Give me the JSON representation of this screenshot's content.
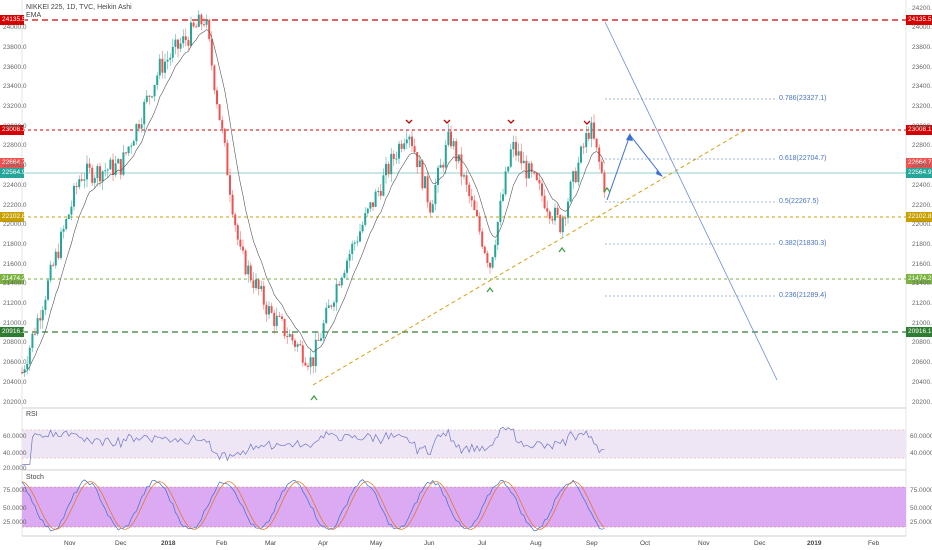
{
  "header": {
    "symbol_line": "NIKKEI 225, 1D, TVC, Heikin Ashi",
    "indicator": "EMA"
  },
  "colors": {
    "up": "#26a69a",
    "down": "#ef5350",
    "resistance": "#d50000",
    "support_green": "#2e7d32",
    "support_yellow": "#c8a000",
    "fib": "#4a73c4",
    "band": "#d9c7e8",
    "stoch_band": "#cc99ee"
  },
  "y_axis": {
    "right_ticks": [
      "24200.0",
      "24000.0",
      "23800.0",
      "23600.0",
      "23400.0",
      "23200.0",
      "23000.0",
      "22800.0",
      "22600.0",
      "22400.0",
      "22200.0",
      "22000.0",
      "21800.0",
      "21600.0",
      "21400.0",
      "21200.0",
      "21000.0",
      "20800.0",
      "20600.0",
      "20400.0",
      "20200.0"
    ],
    "left_ticks": [
      "24200.0",
      "24000.0",
      "23800.0",
      "23600.0",
      "23400.0",
      "23200.0",
      "23000.0",
      "22800.0",
      "22600.0",
      "22400.0",
      "22200.0",
      "22000.0",
      "21800.0",
      "21600.0",
      "21400.0",
      "21200.0",
      "21000.0",
      "20800.0",
      "20600.0",
      "20400.0",
      "20200.0"
    ]
  },
  "level_tags": {
    "top_red": "24135.5",
    "mid_red": "23008.1",
    "price_red": "22664.7",
    "price_teal": "22564.9",
    "yellow": "22102.8",
    "green_light": "21474.2",
    "green_dark": "20916.1"
  },
  "fib_levels": [
    {
      "label": "0.786(23327.1)"
    },
    {
      "label": "0.618(22704.7)"
    },
    {
      "label": "0.5(22267.5)"
    },
    {
      "label": "0.382(21830.3)"
    },
    {
      "label": "0.236(21289.4)"
    }
  ],
  "rsi": {
    "label": "RSI",
    "ticks": [
      "80.0000",
      "60.0000",
      "40.0000",
      "20.0000"
    ]
  },
  "stoch": {
    "label": "Stoch",
    "ticks": [
      "75.0000",
      "50.0000",
      "25.0000"
    ]
  },
  "x_axis": {
    "labels": [
      "Nov",
      "Dec",
      "2018",
      "Feb",
      "Mar",
      "Apr",
      "May",
      "Jun",
      "Jul",
      "Aug",
      "Sep",
      "Oct",
      "Nov",
      "Dec",
      "2019",
      "Feb"
    ]
  },
  "chart_data": {
    "type": "candlestick",
    "title": "NIKKEI 225, 1D, TVC, Heikin Ashi",
    "ylim": [
      20100,
      24300
    ],
    "key_points": [
      {
        "x": "Oct",
        "y": 20500
      },
      {
        "x": "Nov",
        "y": 22500
      },
      {
        "x": "Dec",
        "y": 22600
      },
      {
        "x": "2018",
        "y": 23600
      },
      {
        "x": "Jan",
        "y": 24100
      },
      {
        "x": "Feb",
        "y": 21700
      },
      {
        "x": "Mar",
        "y": 21100
      },
      {
        "x": "Mar",
        "y": 20600
      },
      {
        "x": "Apr",
        "y": 21500
      },
      {
        "x": "May",
        "y": 23000
      },
      {
        "x": "Jun",
        "y": 22200
      },
      {
        "x": "Jun",
        "y": 22900
      },
      {
        "x": "Jul",
        "y": 21600
      },
      {
        "x": "Jul",
        "y": 22800
      },
      {
        "x": "Aug",
        "y": 22000
      },
      {
        "x": "Sep",
        "y": 23000
      },
      {
        "x": "Sep",
        "y": 22300
      }
    ]
  }
}
